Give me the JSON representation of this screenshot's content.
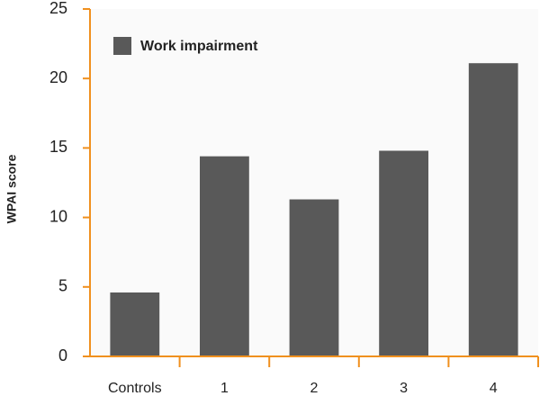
{
  "chart_data": {
    "type": "bar",
    "y_label": "WPAI score",
    "categories": [
      "Controls",
      "1",
      "2",
      "3",
      "4"
    ],
    "series": [
      {
        "name": "Work impairment",
        "color": "#595959",
        "values": [
          4.6,
          14.4,
          11.3,
          14.8,
          21.1
        ]
      }
    ],
    "ylim": [
      0,
      25
    ],
    "yticks": [
      0,
      5,
      10,
      15,
      20,
      25
    ],
    "axis_color": "#f0901e"
  }
}
